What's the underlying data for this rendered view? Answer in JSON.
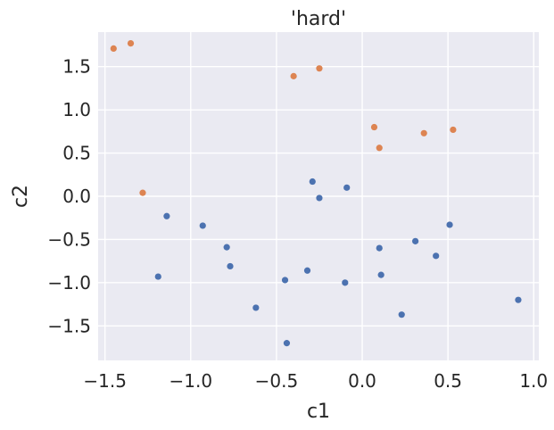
{
  "chart_data": {
    "type": "scatter",
    "title": "'hard'",
    "xlabel": "c1",
    "ylabel": "c2",
    "xlim": [
      -1.54,
      1.03
    ],
    "ylim": [
      -1.9,
      1.9
    ],
    "xticks": [
      -1.5,
      -1.0,
      -0.5,
      0.0,
      0.5,
      1.0
    ],
    "xtick_labels": [
      "−1.5",
      "−1.0",
      "−0.5",
      "0.0",
      "0.5",
      "1.0"
    ],
    "yticks": [
      -1.5,
      -1.0,
      -0.5,
      0.0,
      0.5,
      1.0,
      1.5
    ],
    "ytick_labels": [
      "−1.5",
      "−1.0",
      "−0.5",
      "0.0",
      "0.5",
      "1.0",
      "1.5"
    ],
    "grid": true,
    "colors": {
      "background": "#eaeaf2",
      "grid": "#ffffff",
      "text": "#262626"
    },
    "series": [
      {
        "color": "#4c72b0",
        "points": [
          {
            "x": -1.14,
            "y": -0.23
          },
          {
            "x": -1.19,
            "y": -0.93
          },
          {
            "x": -0.93,
            "y": -0.34
          },
          {
            "x": -0.79,
            "y": -0.59
          },
          {
            "x": -0.77,
            "y": -0.81
          },
          {
            "x": -0.62,
            "y": -1.29
          },
          {
            "x": -0.45,
            "y": -0.97
          },
          {
            "x": -0.44,
            "y": -1.7
          },
          {
            "x": -0.32,
            "y": -0.86
          },
          {
            "x": -0.29,
            "y": 0.17
          },
          {
            "x": -0.25,
            "y": -0.02
          },
          {
            "x": -0.09,
            "y": 0.1
          },
          {
            "x": -0.1,
            "y": -1.0
          },
          {
            "x": 0.1,
            "y": -0.6
          },
          {
            "x": 0.11,
            "y": -0.91
          },
          {
            "x": 0.23,
            "y": -1.37
          },
          {
            "x": 0.31,
            "y": -0.52
          },
          {
            "x": 0.43,
            "y": -0.69
          },
          {
            "x": 0.51,
            "y": -0.33
          },
          {
            "x": 0.91,
            "y": -1.2
          }
        ]
      },
      {
        "color": "#dd8452",
        "points": [
          {
            "x": -1.45,
            "y": 1.71
          },
          {
            "x": -1.35,
            "y": 1.77
          },
          {
            "x": -1.28,
            "y": 0.04
          },
          {
            "x": -0.4,
            "y": 1.39
          },
          {
            "x": -0.25,
            "y": 1.48
          },
          {
            "x": 0.07,
            "y": 0.8
          },
          {
            "x": 0.1,
            "y": 0.56
          },
          {
            "x": 0.36,
            "y": 0.73
          },
          {
            "x": 0.53,
            "y": 0.77
          }
        ]
      }
    ]
  }
}
